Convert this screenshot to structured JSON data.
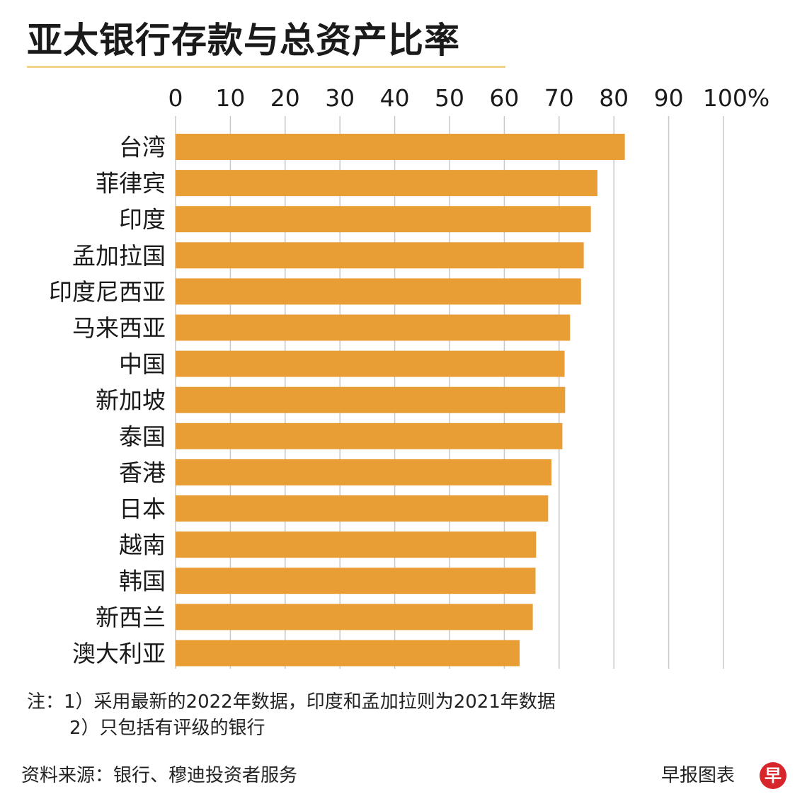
{
  "title": "亚太银行存款与总资产比率",
  "notes": {
    "line1": "注：1）采用最新的2022年数据，印度和孟加拉则为2021年数据",
    "line2": "2）只包括有评级的银行"
  },
  "source": "资料来源：银行、穆迪投资者服务",
  "brand": "早报图表",
  "logo_text": "早",
  "colors": {
    "bar": "#e99d35",
    "grid": "#c8c8c8",
    "logo": "#d7262b"
  },
  "chart_data": {
    "type": "bar",
    "orientation": "horizontal",
    "title": "亚太银行存款与总资产比率",
    "xlim": [
      0,
      100
    ],
    "ticks": [
      0,
      10,
      20,
      30,
      40,
      50,
      60,
      70,
      80,
      90,
      100
    ],
    "tick_labels": [
      "0",
      "10",
      "20",
      "30",
      "40",
      "50",
      "60",
      "70",
      "80",
      "90",
      "100%"
    ],
    "grid": true,
    "categories": [
      "台湾",
      "菲律宾",
      "印度",
      "孟加拉国",
      "印度尼西亚",
      "马来西亚",
      "中国",
      "新加坡",
      "泰国",
      "香港",
      "日本",
      "越南",
      "韩国",
      "新西兰",
      "澳大利亚"
    ],
    "values": [
      82,
      77,
      75.8,
      74.5,
      74,
      72,
      71,
      71.1,
      70.6,
      68.6,
      68,
      65.8,
      65.7,
      65.2,
      62.8
    ]
  }
}
